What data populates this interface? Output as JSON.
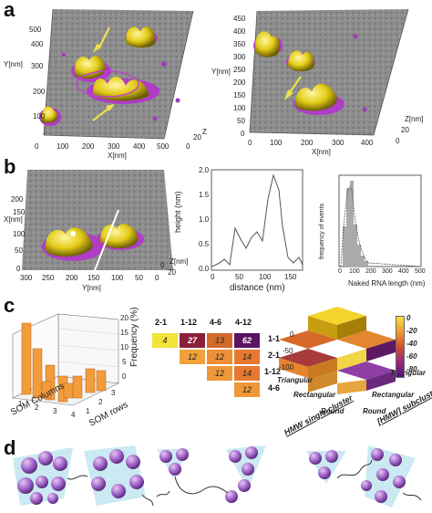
{
  "panels": {
    "a": {
      "label": "a",
      "left": {
        "y_axis": "Y[nm]",
        "x_axis": "X[nm]",
        "z_axis": "Z",
        "y_ticks": [
          "100",
          "200",
          "300",
          "400",
          "500"
        ],
        "x_ticks": [
          "0",
          "100",
          "200",
          "300",
          "400",
          "500"
        ],
        "z_ticks": [
          "0",
          "20"
        ]
      },
      "right": {
        "y_axis": "Y[nm]",
        "x_axis": "X[nm]",
        "z_axis": "Z[nm]",
        "y_ticks": [
          "0",
          "50",
          "100",
          "150",
          "200",
          "250",
          "300",
          "350",
          "400",
          "450"
        ],
        "x_ticks": [
          "0",
          "100",
          "200",
          "300",
          "400"
        ],
        "z_ticks": [
          "0",
          "20"
        ]
      }
    },
    "b": {
      "label": "b",
      "afm": {
        "x_axis": "X[nm]",
        "y_axis": "Y[nm]",
        "z_axis": "Z[nm]",
        "x_ticks": [
          "0",
          "50",
          "100",
          "150",
          "200"
        ],
        "y_ticks": [
          "300",
          "250",
          "200",
          "150",
          "100",
          "50",
          "0"
        ],
        "z_ticks": [
          "0",
          "20"
        ]
      },
      "profile": {
        "ylabel": "height (nm)",
        "xlabel": "distance (nm)",
        "y_ticks": [
          "0.0",
          "0.5",
          "1.0",
          "1.5",
          "2.0"
        ],
        "x_ticks": [
          "0",
          "50",
          "100",
          "150"
        ]
      },
      "histogram": {
        "ylabel": "frequency of events",
        "xlabel": "Naked RNA length (nm)",
        "x_ticks": [
          "0",
          "100",
          "200",
          "300",
          "400",
          "500"
        ]
      }
    },
    "c": {
      "label": "c",
      "bar3d": {
        "zlabel": "Frequency (%)",
        "xlabel": "SOM Columns",
        "ylabel": "SOM rows",
        "z_ticks": [
          "0",
          "5",
          "10",
          "15",
          "20"
        ],
        "col_ticks": [
          "1",
          "2",
          "3",
          "4"
        ],
        "row_ticks": [
          "1",
          "2",
          "3"
        ]
      },
      "matrix": {
        "col_headers": [
          "2-1",
          "1-12",
          "4-6",
          "4-12"
        ],
        "row_headers": [
          "1-1",
          "2-1",
          "1-12",
          "4-6"
        ],
        "rows": [
          [
            "4",
            "27",
            "13",
            "62"
          ],
          [
            "",
            "12",
            "12",
            "14"
          ],
          [
            "",
            "",
            "12",
            "14"
          ],
          [
            "",
            "",
            "",
            "12"
          ]
        ],
        "colors": [
          [
            "#f2e23a",
            "#8a1f3a",
            "#d26a2a",
            "#5b1363"
          ],
          [
            "",
            "#f0a13a",
            "#ec8f36",
            "#e6792f"
          ],
          [
            "",
            "",
            "#ee9838",
            "#e6792f"
          ],
          [
            "",
            "",
            "",
            "#ee9838"
          ]
        ]
      },
      "heat3d": {
        "z_ticks": [
          "0",
          "-50",
          "-100"
        ],
        "left_axis": [
          "Triangular",
          "Rectangular",
          "Round"
        ],
        "right_axis": [
          "Triangular",
          "Rectangular",
          "Round"
        ],
        "left_title": "HMW single-cluster",
        "right_title": "[HMW] subclusters",
        "colorbar_ticks": [
          "0",
          "-20",
          "-40",
          "-60",
          "-80"
        ]
      }
    },
    "d": {
      "label": "d"
    }
  },
  "colors": {
    "orange": "#f39c3c",
    "purple": "#a062c9",
    "yellow": "#e8d21f",
    "cyan": "#bde3ef"
  }
}
